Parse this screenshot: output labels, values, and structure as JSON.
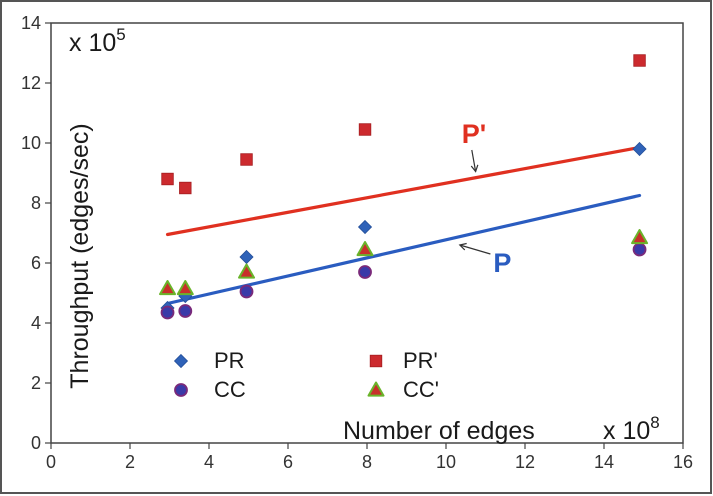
{
  "chart_data": {
    "type": "scatter",
    "xlabel": "Number of edges",
    "x_multiplier": "x 10",
    "x_exponent": "8",
    "ylabel": "Throughput (edges/sec)",
    "y_multiplier": "x 10",
    "y_exponent": "5",
    "xlim": [
      0,
      16
    ],
    "ylim": [
      0,
      14
    ],
    "x_ticks": [
      "0",
      "2",
      "4",
      "6",
      "8",
      "10",
      "12",
      "14",
      "16"
    ],
    "y_ticks": [
      "0",
      "2",
      "4",
      "6",
      "8",
      "10",
      "12",
      "14"
    ],
    "grid": false,
    "legend_position": "bottom-left",
    "series": [
      {
        "name": "PR",
        "marker": "diamond",
        "color": "#2f62b8",
        "x": [
          2.95,
          3.4,
          4.95,
          7.95,
          14.9
        ],
        "y": [
          4.5,
          4.9,
          6.2,
          7.2,
          9.8
        ]
      },
      {
        "name": "PR'",
        "marker": "square",
        "color": "#cc2a2e",
        "x": [
          2.95,
          3.4,
          4.95,
          7.95,
          14.9
        ],
        "y": [
          8.8,
          8.5,
          9.45,
          10.45,
          12.75
        ]
      },
      {
        "name": "CC",
        "marker": "circle",
        "color": "#3a3aa8",
        "x": [
          2.95,
          3.4,
          4.95,
          7.95,
          14.9
        ],
        "y": [
          4.35,
          4.4,
          5.05,
          5.7,
          6.45
        ]
      },
      {
        "name": "CC'",
        "marker": "triangle",
        "color": "#e0a000",
        "x": [
          2.95,
          3.4,
          4.95,
          7.95,
          14.9
        ],
        "y": [
          5.15,
          5.15,
          5.7,
          6.45,
          6.85
        ]
      }
    ],
    "trendlines": [
      {
        "name": "P'",
        "color": "#e03020",
        "x": [
          2.95,
          14.9
        ],
        "y": [
          6.95,
          9.85
        ]
      },
      {
        "name": "P",
        "color": "#2a5cc0",
        "x": [
          2.95,
          14.9
        ],
        "y": [
          4.65,
          8.25
        ]
      }
    ],
    "annotations": [
      {
        "text": "P'",
        "color": "#e03020",
        "at": [
          10.4,
          10.0
        ],
        "arrow_to": [
          10.75,
          9.05
        ]
      },
      {
        "text": "P",
        "color": "#2a5cc0",
        "at": [
          11.2,
          5.7
        ],
        "arrow_to": [
          10.35,
          6.6
        ]
      }
    ]
  }
}
